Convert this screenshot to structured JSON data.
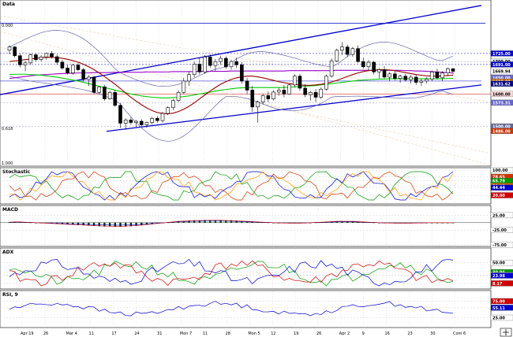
{
  "chart_data": [
    {
      "type": "candlestick",
      "title": "Data",
      "ylim": [
        1380,
        1885
      ],
      "price_tags": [
        {
          "label": "1725.00",
          "value": 1725,
          "color": "#ffffff",
          "bg": "#0000cc"
        },
        {
          "label": "1700.00",
          "value": 1700,
          "color": "#000000",
          "bg": "#e8f4ff"
        },
        {
          "label": "1691.00",
          "value": 1691,
          "color": "#ffffff",
          "bg": "#0000cc"
        },
        {
          "label": "1669.94",
          "value": 1669.94,
          "color": "#000000",
          "bg": "#ffffff"
        },
        {
          "label": "1650.00",
          "value": 1650,
          "color": "#ffffff",
          "bg": "#6666cc"
        },
        {
          "label": "1638.00",
          "value": 1638,
          "color": "#ffffff",
          "bg": "#cc6600"
        },
        {
          "label": "1631.62",
          "value": 1631.62,
          "color": "#ffffff",
          "bg": "#000088"
        },
        {
          "label": "1600.00",
          "value": 1600,
          "color": "#000000",
          "bg": "#ffdddd"
        },
        {
          "label": "1573.31",
          "value": 1573.31,
          "color": "#ffffff",
          "bg": "#6666cc"
        },
        {
          "label": "1500.00",
          "value": 1500,
          "color": "#ffffff",
          "bg": "#666699"
        },
        {
          "label": "1486.00",
          "value": 1486,
          "color": "#ffffff",
          "bg": "#cc3300"
        }
      ],
      "fib_labels": [
        "0.000",
        "0.618",
        "1.000"
      ],
      "candles": [
        [
          1735,
          1750,
          1722,
          1745
        ],
        [
          1745,
          1748,
          1712,
          1718
        ],
        [
          1718,
          1724,
          1682,
          1690
        ],
        [
          1690,
          1702,
          1670,
          1696
        ],
        [
          1696,
          1725,
          1690,
          1721
        ],
        [
          1721,
          1725,
          1700,
          1706
        ],
        [
          1706,
          1720,
          1700,
          1714
        ],
        [
          1714,
          1728,
          1705,
          1725
        ],
        [
          1725,
          1732,
          1710,
          1715
        ],
        [
          1715,
          1722,
          1690,
          1698
        ],
        [
          1698,
          1705,
          1675,
          1680
        ],
        [
          1680,
          1690,
          1660,
          1665
        ],
        [
          1665,
          1692,
          1660,
          1689
        ],
        [
          1689,
          1695,
          1670,
          1675
        ],
        [
          1675,
          1680,
          1638,
          1645
        ],
        [
          1645,
          1658,
          1625,
          1652
        ],
        [
          1652,
          1655,
          1600,
          1605
        ],
        [
          1605,
          1625,
          1598,
          1622
        ],
        [
          1622,
          1628,
          1580,
          1585
        ],
        [
          1585,
          1610,
          1582,
          1605
        ],
        [
          1605,
          1612,
          1560,
          1565
        ],
        [
          1565,
          1572,
          1495,
          1510
        ],
        [
          1510,
          1525,
          1490,
          1520
        ],
        [
          1520,
          1528,
          1505,
          1512
        ],
        [
          1512,
          1520,
          1498,
          1516
        ],
        [
          1516,
          1522,
          1500,
          1505
        ],
        [
          1505,
          1515,
          1496,
          1512
        ],
        [
          1512,
          1530,
          1505,
          1525
        ],
        [
          1525,
          1532,
          1512,
          1518
        ],
        [
          1518,
          1545,
          1512,
          1540
        ],
        [
          1540,
          1562,
          1535,
          1558
        ],
        [
          1558,
          1585,
          1550,
          1580
        ],
        [
          1580,
          1612,
          1575,
          1605
        ],
        [
          1605,
          1650,
          1600,
          1640
        ],
        [
          1640,
          1670,
          1625,
          1660
        ],
        [
          1660,
          1700,
          1652,
          1692
        ],
        [
          1692,
          1712,
          1660,
          1668
        ],
        [
          1668,
          1720,
          1662,
          1714
        ],
        [
          1714,
          1722,
          1680,
          1688
        ],
        [
          1688,
          1708,
          1672,
          1700
        ],
        [
          1700,
          1718,
          1690,
          1710
        ],
        [
          1710,
          1716,
          1678,
          1684
        ],
        [
          1684,
          1706,
          1675,
          1700
        ],
        [
          1700,
          1712,
          1680,
          1690
        ],
        [
          1690,
          1698,
          1632,
          1640
        ],
        [
          1640,
          1650,
          1600,
          1612
        ],
        [
          1612,
          1625,
          1545,
          1560
        ],
        [
          1560,
          1580,
          1512,
          1575
        ],
        [
          1575,
          1600,
          1568,
          1595
        ],
        [
          1595,
          1608,
          1575,
          1585
        ],
        [
          1585,
          1612,
          1580,
          1606
        ],
        [
          1606,
          1620,
          1595,
          1612
        ],
        [
          1612,
          1628,
          1590,
          1600
        ],
        [
          1600,
          1632,
          1598,
          1628
        ],
        [
          1628,
          1660,
          1620,
          1655
        ],
        [
          1655,
          1662,
          1610,
          1618
        ],
        [
          1618,
          1630,
          1590,
          1598
        ],
        [
          1598,
          1610,
          1580,
          1605
        ],
        [
          1605,
          1615,
          1575,
          1590
        ],
        [
          1590,
          1620,
          1585,
          1615
        ],
        [
          1615,
          1660,
          1610,
          1655
        ],
        [
          1655,
          1710,
          1650,
          1702
        ],
        [
          1702,
          1740,
          1698,
          1735
        ],
        [
          1735,
          1760,
          1720,
          1745
        ],
        [
          1745,
          1752,
          1715,
          1722
        ],
        [
          1722,
          1745,
          1715,
          1740
        ],
        [
          1740,
          1750,
          1695,
          1700
        ],
        [
          1700,
          1712,
          1678,
          1684
        ],
        [
          1684,
          1705,
          1672,
          1698
        ],
        [
          1698,
          1702,
          1660,
          1668
        ],
        [
          1668,
          1680,
          1648,
          1675
        ],
        [
          1675,
          1686,
          1648,
          1652
        ],
        [
          1652,
          1668,
          1640,
          1662
        ],
        [
          1662,
          1672,
          1642,
          1648
        ],
        [
          1648,
          1660,
          1635,
          1655
        ],
        [
          1655,
          1662,
          1638,
          1644
        ],
        [
          1644,
          1658,
          1632,
          1652
        ],
        [
          1652,
          1660,
          1628,
          1636
        ],
        [
          1636,
          1648,
          1625,
          1640
        ],
        [
          1640,
          1652,
          1632,
          1646
        ],
        [
          1646,
          1672,
          1640,
          1668
        ],
        [
          1668,
          1678,
          1645,
          1650
        ],
        [
          1650,
          1670,
          1640,
          1665
        ],
        [
          1665,
          1682,
          1655,
          1678
        ],
        [
          1678,
          1680,
          1660,
          1670
        ]
      ],
      "sma_red": [
        1700,
        1702,
        1704,
        1706,
        1708,
        1710,
        1712,
        1713,
        1713,
        1712,
        1710,
        1707,
        1703,
        1698,
        1692,
        1684,
        1675,
        1665,
        1654,
        1642,
        1630,
        1617,
        1603,
        1590,
        1578,
        1567,
        1557,
        1549,
        1543,
        1540,
        1539,
        1541,
        1546,
        1553,
        1562,
        1573,
        1585,
        1597,
        1609,
        1620,
        1630,
        1638,
        1645,
        1650,
        1653,
        1655,
        1655,
        1653,
        1650,
        1646,
        1642,
        1638,
        1635,
        1632,
        1630,
        1628,
        1627,
        1627,
        1628,
        1630,
        1633,
        1637,
        1642,
        1648,
        1654,
        1660,
        1665,
        1669,
        1672,
        1674,
        1675,
        1675,
        1674,
        1672,
        1669,
        1666,
        1663,
        1660,
        1658,
        1656,
        1655,
        1655,
        1656,
        1657,
        1658
      ],
      "sma_green": [
        1660,
        1661,
        1661,
        1661,
        1660,
        1659,
        1658,
        1656,
        1654,
        1652,
        1649,
        1646,
        1643,
        1640,
        1636,
        1632,
        1628,
        1624,
        1620,
        1616,
        1612,
        1608,
        1604,
        1600,
        1597,
        1594,
        1592,
        1590,
        1589,
        1588,
        1588,
        1589,
        1590,
        1592,
        1594,
        1597,
        1600,
        1603,
        1606,
        1609,
        1612,
        1614,
        1616,
        1618,
        1619,
        1620,
        1620,
        1620,
        1620,
        1620,
        1620,
        1620,
        1620,
        1621,
        1622,
        1623,
        1624,
        1625,
        1626,
        1628,
        1630,
        1632,
        1634,
        1636,
        1638,
        1640,
        1642,
        1643,
        1644,
        1645,
        1646,
        1646,
        1647,
        1647,
        1647,
        1647,
        1647,
        1647,
        1647,
        1647,
        1647,
        1647,
        1647,
        1648,
        1648
      ],
      "sma_purple": [
        1648,
        1650,
        1652,
        1654,
        1656,
        1658,
        1659,
        1660,
        1661,
        1662,
        1663,
        1664,
        1664,
        1665,
        1665,
        1665,
        1666,
        1666,
        1666,
        1666,
        1667,
        1667,
        1667,
        1667,
        1667,
        1667,
        1668,
        1668,
        1668,
        1668,
        1668,
        1669,
        1669,
        1669,
        1669,
        1669,
        1670,
        1670,
        1670,
        1670,
        1670,
        1670,
        1671,
        1671,
        1671,
        1671,
        1671,
        1671,
        1671,
        1671,
        1671,
        1671,
        1671,
        1672,
        1672,
        1672,
        1672,
        1672,
        1672,
        1672,
        1672,
        1672,
        1673,
        1673,
        1673,
        1673,
        1673,
        1673,
        1673,
        1673,
        1673,
        1673,
        1673,
        1673,
        1673,
        1672,
        1672,
        1671,
        1671,
        1670,
        1669,
        1668,
        1667,
        1666,
        1665
      ]
    },
    {
      "type": "line",
      "title": "Stochastic",
      "ylim": [
        0,
        100
      ],
      "tags": [
        {
          "label": "100.00",
          "value": 100,
          "bg": "#ffffff",
          "color": "#000"
        },
        {
          "label": "78.65",
          "value": 78.65,
          "bg": "#cc3300",
          "color": "#fff"
        },
        {
          "label": "65.79",
          "value": 65.79,
          "bg": "#009900",
          "color": "#fff"
        },
        {
          "label": "50.00",
          "value": 50,
          "bg": "#cc6600",
          "color": "#fff"
        },
        {
          "label": "44.44",
          "value": 44.44,
          "bg": "#0000cc",
          "color": "#fff"
        },
        {
          "label": "20.00",
          "value": 20,
          "bg": "#cc0000",
          "color": "#fff"
        }
      ]
    },
    {
      "type": "bar",
      "title": "MACD",
      "ylim": [
        -75,
        50
      ],
      "tags": [
        {
          "label": "25.00",
          "value": 25,
          "bg": "#ffffff",
          "color": "#000"
        },
        {
          "label": "-25.00",
          "value": -25,
          "bg": "#ffffff",
          "color": "#000"
        },
        {
          "label": "-75.00",
          "value": -75,
          "bg": "#ffffff",
          "color": "#000"
        }
      ],
      "values": [
        2,
        3,
        3,
        2,
        1,
        0,
        -1,
        -2,
        -3,
        -4,
        -5,
        -6,
        -7,
        -8,
        -9,
        -10,
        -11,
        -12,
        -13,
        -13,
        -14,
        -14,
        -13,
        -12,
        -11,
        -9,
        -7,
        -5,
        -3,
        -1,
        1,
        3,
        5,
        6,
        7,
        8,
        8,
        9,
        9,
        9,
        9,
        8,
        8,
        7,
        6,
        5,
        4,
        3,
        2,
        1,
        0,
        -1,
        -1,
        -2,
        -2,
        -2,
        -1,
        0,
        1,
        2,
        3,
        4,
        5,
        5,
        5,
        5,
        4,
        3,
        2,
        1,
        0,
        -1,
        -1,
        -2,
        -2,
        -2,
        -2,
        -1,
        -1,
        0,
        0,
        0,
        0,
        0,
        0
      ]
    },
    {
      "type": "line",
      "title": "ADX",
      "ylim": [
        0,
        75
      ],
      "tags": [
        {
          "label": "50.00",
          "value": 50,
          "bg": "#ffffff",
          "color": "#000"
        },
        {
          "label": "30.96",
          "value": 30.96,
          "bg": "#009900",
          "color": "#fff"
        },
        {
          "label": "25.00",
          "value": 25,
          "bg": "#ffffff",
          "color": "#000"
        },
        {
          "label": "23.98",
          "value": 23.98,
          "bg": "#0000cc",
          "color": "#fff"
        },
        {
          "label": "8.17",
          "value": 8.17,
          "bg": "#cc0000",
          "color": "#fff"
        }
      ]
    },
    {
      "type": "line",
      "title": "RSI, 9",
      "ylim": [
        0,
        100
      ],
      "tags": [
        {
          "label": "75.00",
          "value": 75,
          "bg": "#cc0000",
          "color": "#fff"
        },
        {
          "label": "55.11",
          "value": 55.11,
          "bg": "#0000cc",
          "color": "#fff"
        },
        {
          "label": "25.00",
          "value": 25,
          "bg": "#ffffff",
          "color": "#000"
        }
      ]
    }
  ],
  "x_axis": {
    "labels": [
      "Apr 19",
      "26",
      "Mar 4",
      "11",
      "17",
      "24",
      "31",
      "Mon 7",
      "11",
      "28",
      "Mon 5",
      "12",
      "19",
      "26",
      "Apr 2",
      "9",
      "16",
      "23",
      "30",
      "Com 6"
    ]
  },
  "colors": {
    "up": "#ffffff",
    "down": "#000000",
    "channel": "#0000cc",
    "bollinger": "#6666aa",
    "sma_red": "#990000",
    "sma_green": "#00cc00",
    "sma_purple": "#9900cc"
  }
}
